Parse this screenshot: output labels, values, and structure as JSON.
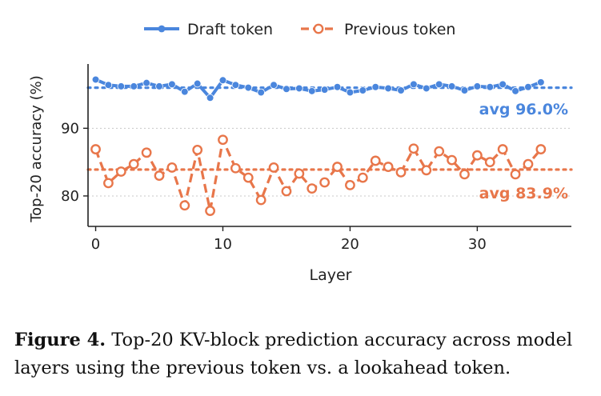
{
  "chart_data": {
    "type": "line",
    "xlabel": "Layer",
    "ylabel": "Top-20 accuracy (%)",
    "xlim": [
      -0.6,
      37.4
    ],
    "ylim": [
      75.5,
      99.5
    ],
    "xticks": [
      0,
      10,
      20,
      30
    ],
    "yticks": [
      80,
      90
    ],
    "grid": "horizontal dotted",
    "legend_position": "top",
    "x": [
      0,
      1,
      2,
      3,
      4,
      5,
      6,
      7,
      8,
      9,
      10,
      11,
      12,
      13,
      14,
      15,
      16,
      17,
      18,
      19,
      20,
      21,
      22,
      23,
      24,
      25,
      26,
      27,
      28,
      29,
      30,
      31,
      32,
      33,
      34,
      35
    ],
    "series": [
      {
        "name": "Draft token",
        "color": "#4a86dd",
        "style": "solid",
        "marker": "filled-circle",
        "values": [
          97.2,
          96.4,
          96.2,
          96.2,
          96.7,
          96.2,
          96.5,
          95.4,
          96.6,
          94.5,
          97.1,
          96.4,
          96.0,
          95.3,
          96.4,
          95.8,
          95.9,
          95.5,
          95.7,
          96.1,
          95.3,
          95.6,
          96.1,
          95.9,
          95.6,
          96.5,
          95.9,
          96.5,
          96.2,
          95.6,
          96.2,
          96.1,
          96.5,
          95.5,
          96.1,
          96.8
        ],
        "average": 96.0,
        "average_label": "avg 96.0%"
      },
      {
        "name": "Previous token",
        "color": "#e8764a",
        "style": "dashed",
        "marker": "open-circle",
        "values": [
          86.9,
          81.9,
          83.6,
          84.7,
          86.4,
          83.0,
          84.2,
          78.6,
          86.8,
          77.8,
          88.3,
          84.1,
          82.7,
          79.4,
          84.2,
          80.7,
          83.3,
          81.1,
          82.0,
          84.3,
          81.6,
          82.7,
          85.2,
          84.3,
          83.5,
          87.0,
          83.8,
          86.6,
          85.3,
          83.2,
          86.0,
          85.0,
          86.9,
          83.2,
          84.7,
          86.9
        ],
        "average": 83.9,
        "average_label": "avg 83.9%"
      }
    ]
  },
  "caption": {
    "label": "Figure 4.",
    "text": " Top-20 KV-block prediction accuracy across model layers using the previous token vs. a lookahead token."
  }
}
